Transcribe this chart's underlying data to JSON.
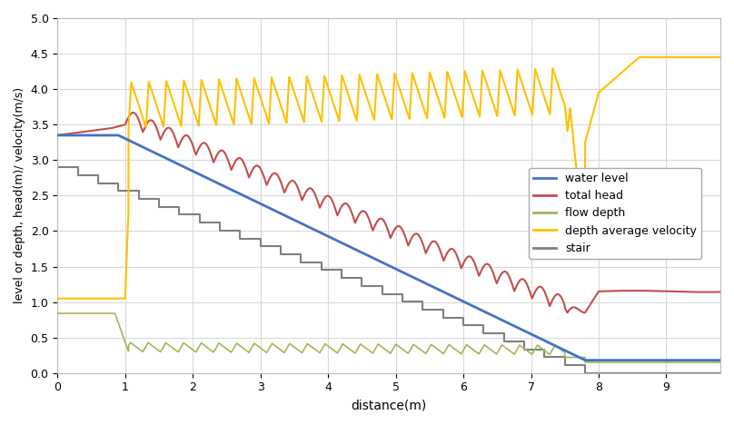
{
  "xlabel": "distance(m)",
  "ylabel": "level or depth, head(m)/ velocity(m/s)",
  "xlim": [
    0.0,
    9.8
  ],
  "ylim": [
    0.0,
    5.0
  ],
  "xticks": [
    0.0,
    1.0,
    2.0,
    3.0,
    4.0,
    5.0,
    6.0,
    7.0,
    8.0,
    9.0
  ],
  "yticks": [
    0.0,
    0.5,
    1.0,
    1.5,
    2.0,
    2.5,
    3.0,
    3.5,
    4.0,
    4.5,
    5.0
  ],
  "colors": {
    "water_level": "#4472C4",
    "total_head": "#C0504D",
    "flow_depth": "#9BBB59",
    "velocity": "#FFC000",
    "stair": "#7F7F7F"
  },
  "legend_labels": [
    "water level",
    "total head",
    "flow depth",
    "depth average velocity",
    "stair"
  ],
  "background": "#FFFFFF",
  "grid_color": "#D9D9D9",
  "n_steps": 26,
  "stair_start_x": 0.0,
  "stair_end_x": 7.8,
  "stair_start_y": 2.9,
  "stair_end_y": 0.0
}
